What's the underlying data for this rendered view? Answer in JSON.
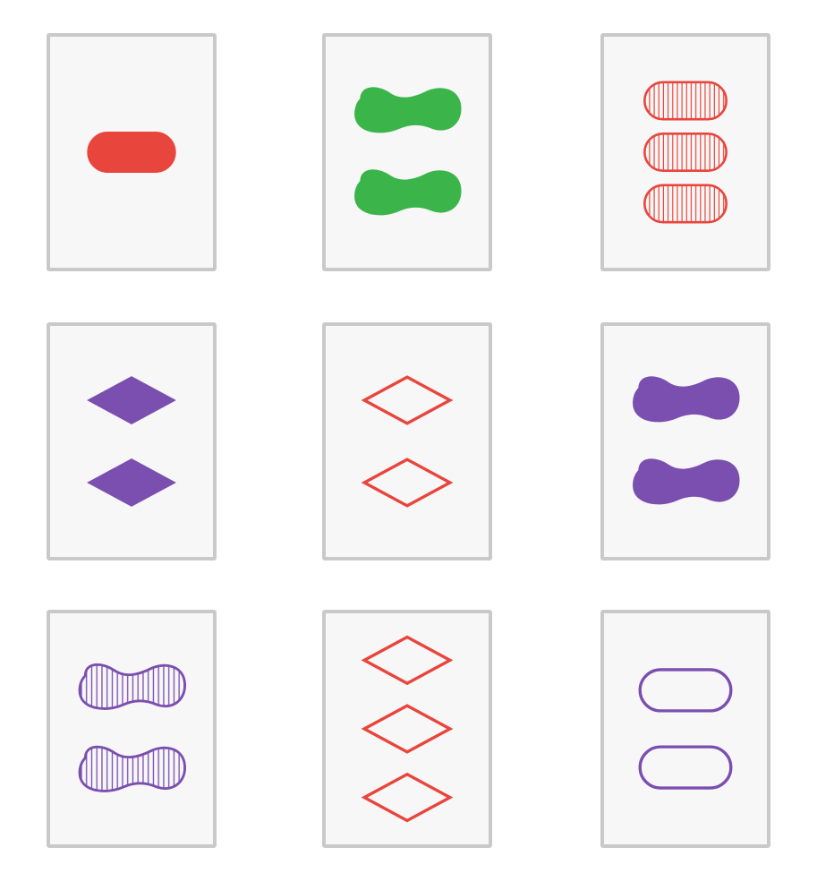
{
  "game": {
    "colors": {
      "red": "#e8453c",
      "green": "#3bb54a",
      "purple": "#7a4fb0"
    },
    "cards": [
      {
        "id": "r0c0",
        "count": 1,
        "shape": "oval",
        "color": "red",
        "shading": "solid"
      },
      {
        "id": "r0c1",
        "count": 2,
        "shape": "squiggle",
        "color": "green",
        "shading": "solid"
      },
      {
        "id": "r0c2",
        "count": 3,
        "shape": "oval",
        "color": "red",
        "shading": "striped"
      },
      {
        "id": "r1c0",
        "count": 2,
        "shape": "diamond",
        "color": "purple",
        "shading": "solid"
      },
      {
        "id": "r1c1",
        "count": 2,
        "shape": "diamond",
        "color": "red",
        "shading": "open"
      },
      {
        "id": "r1c2",
        "count": 2,
        "shape": "squiggle",
        "color": "purple",
        "shading": "solid"
      },
      {
        "id": "r2c0",
        "count": 2,
        "shape": "squiggle",
        "color": "purple",
        "shading": "striped"
      },
      {
        "id": "r2c1",
        "count": 3,
        "shape": "diamond",
        "color": "red",
        "shading": "open"
      },
      {
        "id": "r2c2",
        "count": 2,
        "shape": "oval",
        "color": "purple",
        "shading": "open"
      }
    ]
  }
}
